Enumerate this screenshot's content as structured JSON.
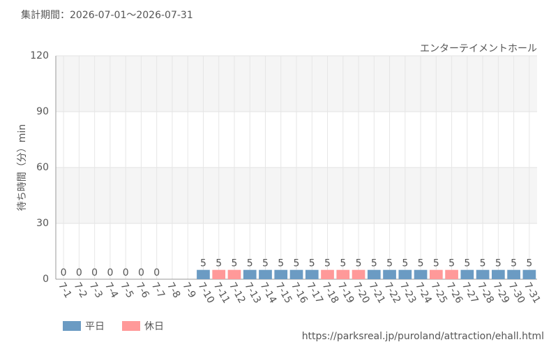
{
  "chart_data": {
    "type": "bar",
    "period": "集計期間：2026-07-01～2026-07-31",
    "subtitle": "エンターテイメントホール",
    "ylabel": "待ち時間（分）min",
    "source": "https://parksreal.jp/puroland/attraction/ehall.html",
    "categories": [
      "7-1",
      "7-2",
      "7-3",
      "7-4",
      "7-5",
      "7-6",
      "7-7",
      "7-8",
      "7-9",
      "7-10",
      "7-11",
      "7-12",
      "7-13",
      "7-14",
      "7-15",
      "7-16",
      "7-17",
      "7-18",
      "7-19",
      "7-20",
      "7-21",
      "7-22",
      "7-23",
      "7-24",
      "7-25",
      "7-26",
      "7-27",
      "7-28",
      "7-29",
      "7-30",
      "7-31"
    ],
    "series": [
      {
        "name": "平日",
        "color": "#6b9bc3",
        "values": [
          0,
          0,
          0,
          null,
          null,
          0,
          0,
          null,
          null,
          5,
          null,
          null,
          5,
          5,
          5,
          5,
          5,
          null,
          null,
          null,
          5,
          5,
          5,
          5,
          null,
          null,
          5,
          5,
          5,
          5,
          5
        ]
      },
      {
        "name": "休日",
        "color": "#ff9999",
        "values": [
          null,
          null,
          null,
          0,
          0,
          null,
          null,
          null,
          null,
          null,
          5,
          5,
          null,
          null,
          null,
          null,
          null,
          5,
          5,
          5,
          null,
          null,
          null,
          null,
          5,
          5,
          null,
          null,
          null,
          null,
          null
        ]
      }
    ],
    "ylim": [
      0,
      120
    ],
    "yticks": [
      0,
      30,
      60,
      90,
      120
    ],
    "grid": true
  }
}
